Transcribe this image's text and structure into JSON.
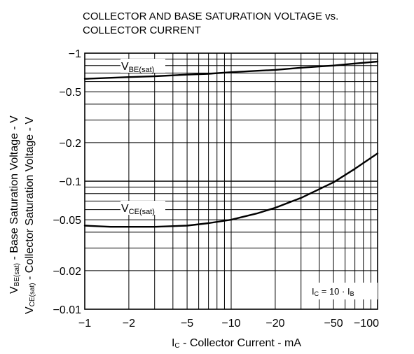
{
  "chart_data": {
    "type": "line",
    "title_line1": "COLLECTOR AND BASE SATURATION VOLTAGE vs.",
    "title_line2": "COLLECTOR CURRENT",
    "xlabel": "IC - Collector Current - mA",
    "xlabel_main": "I",
    "xlabel_sub": "C",
    "xlabel_rest": " - Collector Current - mA",
    "ylabel_line1": {
      "main": "V",
      "sub": "BE(sat)",
      "rest": " - Base Saturation Voltage - V"
    },
    "ylabel_line2": {
      "main": "V",
      "sub": "CE(sat)",
      "rest": " - Collector Saturation Voltage - V"
    },
    "x_scale": "log",
    "y_scale": "log",
    "xlim": [
      -1,
      -100
    ],
    "ylim": [
      -0.01,
      -1
    ],
    "x_ticks": [
      "−1",
      "−2",
      "−5",
      "−10",
      "−20",
      "−50",
      "−100"
    ],
    "x_tick_values": [
      -1,
      -2,
      -5,
      -10,
      -20,
      -50,
      -100
    ],
    "y_ticks": [
      "−1",
      "−0.5",
      "−0.2",
      "−0.1",
      "−0.05",
      "−0.02",
      "−0.01"
    ],
    "y_tick_values": [
      -1,
      -0.5,
      -0.2,
      -0.1,
      -0.05,
      -0.02,
      -0.01
    ],
    "grid": true,
    "series": [
      {
        "name": "VBE(sat)",
        "label_main": "V",
        "label_sub": "BE(sat)",
        "x": [
          -1,
          -2,
          -3,
          -5,
          -7,
          -10,
          -20,
          -30,
          -50,
          -70,
          -100
        ],
        "y": [
          -0.63,
          -0.65,
          -0.66,
          -0.68,
          -0.69,
          -0.71,
          -0.74,
          -0.77,
          -0.8,
          -0.83,
          -0.86
        ]
      },
      {
        "name": "VCE(sat)",
        "label_main": "V",
        "label_sub": "CE(sat)",
        "x": [
          -1,
          -1.5,
          -2,
          -3,
          -5,
          -7,
          -10,
          -15,
          -20,
          -30,
          -50,
          -70,
          -100
        ],
        "y": [
          -0.045,
          -0.044,
          -0.044,
          -0.044,
          -0.045,
          -0.047,
          -0.05,
          -0.056,
          -0.062,
          -0.074,
          -0.098,
          -0.125,
          -0.165
        ]
      }
    ],
    "annotation": {
      "text": "IC = 10 · IB",
      "i1": "I",
      "s1": "C",
      "mid": " = 10 · ",
      "i2": "I",
      "s2": "B"
    }
  }
}
